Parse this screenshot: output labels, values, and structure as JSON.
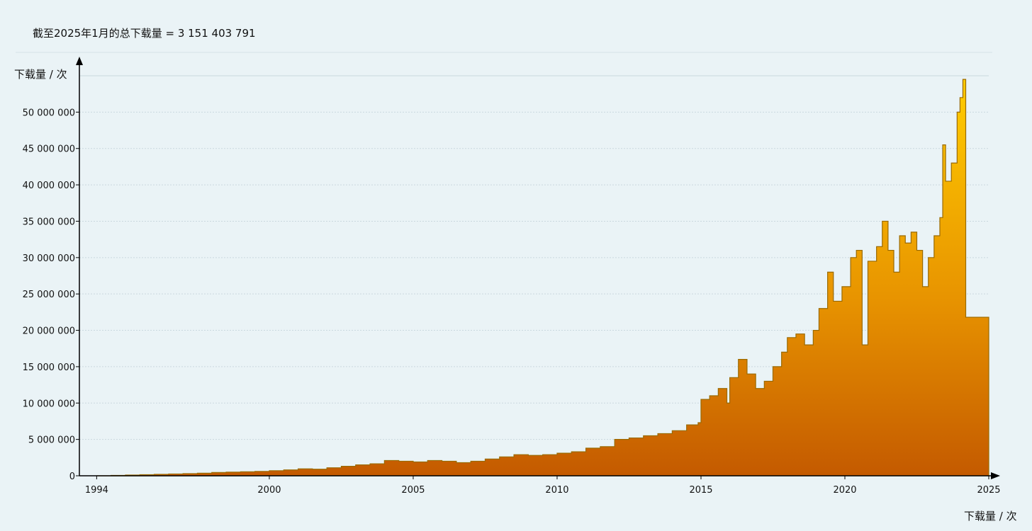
{
  "summary": {
    "label": "截至2025年1月的总下载量",
    "equals": " = ",
    "value": "3 151 403 791"
  },
  "colors": {
    "background": "#eaf3f6",
    "fill_top": "#ffcc00",
    "fill_mid": "#e89400",
    "fill_bottom": "#c45a00",
    "outline": "#9a6a00",
    "grid": "#c9d8de",
    "axis": "#000000"
  },
  "chart_data": {
    "type": "area",
    "step": true,
    "ylabel": "下载量 / 次",
    "xlabel": "下载量 / 次",
    "xlim": [
      1993.4,
      2025
    ],
    "ylim": [
      0,
      55000000
    ],
    "x_ticks": [
      1994,
      2000,
      2005,
      2010,
      2015,
      2020,
      2025
    ],
    "x_tick_labels": [
      "1994",
      "2000",
      "2005",
      "2010",
      "2015",
      "2020",
      "2025"
    ],
    "y_ticks": [
      0,
      5000000,
      10000000,
      15000000,
      20000000,
      25000000,
      30000000,
      35000000,
      40000000,
      45000000,
      50000000
    ],
    "y_tick_labels": [
      "0",
      "5 000 000",
      "10 000 000",
      "15 000 000",
      "20 000 000",
      "25 000 000",
      "30 000 000",
      "35 000 000",
      "40 000 000",
      "45 000 000",
      "50 000 000"
    ],
    "grid": true,
    "series": [
      {
        "points": [
          [
            1994.0,
            0
          ],
          [
            1994.5,
            50000
          ],
          [
            1995.0,
            100000
          ],
          [
            1995.5,
            150000
          ],
          [
            1996.0,
            200000
          ],
          [
            1996.5,
            250000
          ],
          [
            1997.0,
            300000
          ],
          [
            1997.5,
            350000
          ],
          [
            1998.0,
            450000
          ],
          [
            1998.5,
            500000
          ],
          [
            1999.0,
            550000
          ],
          [
            1999.5,
            600000
          ],
          [
            2000.0,
            700000
          ],
          [
            2000.5,
            800000
          ],
          [
            2001.0,
            950000
          ],
          [
            2001.5,
            900000
          ],
          [
            2002.0,
            1100000
          ],
          [
            2002.5,
            1300000
          ],
          [
            2003.0,
            1500000
          ],
          [
            2003.5,
            1650000
          ],
          [
            2004.0,
            2100000
          ],
          [
            2004.5,
            2000000
          ],
          [
            2005.0,
            1900000
          ],
          [
            2005.5,
            2100000
          ],
          [
            2006.0,
            2000000
          ],
          [
            2006.5,
            1800000
          ],
          [
            2007.0,
            2000000
          ],
          [
            2007.5,
            2300000
          ],
          [
            2008.0,
            2600000
          ],
          [
            2008.5,
            2900000
          ],
          [
            2009.0,
            2800000
          ],
          [
            2009.5,
            2900000
          ],
          [
            2010.0,
            3100000
          ],
          [
            2010.5,
            3300000
          ],
          [
            2011.0,
            3800000
          ],
          [
            2011.5,
            4000000
          ],
          [
            2012.0,
            5000000
          ],
          [
            2012.5,
            5200000
          ],
          [
            2013.0,
            5500000
          ],
          [
            2013.5,
            5800000
          ],
          [
            2014.0,
            6200000
          ],
          [
            2014.5,
            7000000
          ],
          [
            2014.9,
            7300000
          ],
          [
            2015.0,
            10500000
          ],
          [
            2015.3,
            11000000
          ],
          [
            2015.6,
            12000000
          ],
          [
            2015.9,
            10000000
          ],
          [
            2016.0,
            13500000
          ],
          [
            2016.3,
            16000000
          ],
          [
            2016.6,
            14000000
          ],
          [
            2016.9,
            12000000
          ],
          [
            2017.2,
            13000000
          ],
          [
            2017.5,
            15000000
          ],
          [
            2017.8,
            17000000
          ],
          [
            2018.0,
            19000000
          ],
          [
            2018.3,
            19500000
          ],
          [
            2018.6,
            18000000
          ],
          [
            2018.9,
            20000000
          ],
          [
            2019.1,
            23000000
          ],
          [
            2019.4,
            28000000
          ],
          [
            2019.6,
            24000000
          ],
          [
            2019.9,
            26000000
          ],
          [
            2020.2,
            30000000
          ],
          [
            2020.4,
            31000000
          ],
          [
            2020.6,
            18000000
          ],
          [
            2020.8,
            29500000
          ],
          [
            2021.1,
            31500000
          ],
          [
            2021.3,
            35000000
          ],
          [
            2021.5,
            31000000
          ],
          [
            2021.7,
            28000000
          ],
          [
            2021.9,
            33000000
          ],
          [
            2022.1,
            32000000
          ],
          [
            2022.3,
            33500000
          ],
          [
            2022.5,
            31000000
          ],
          [
            2022.7,
            26000000
          ],
          [
            2022.9,
            30000000
          ],
          [
            2023.1,
            33000000
          ],
          [
            2023.3,
            35500000
          ],
          [
            2023.4,
            45500000
          ],
          [
            2023.5,
            40500000
          ],
          [
            2023.7,
            43000000
          ],
          [
            2023.9,
            50000000
          ],
          [
            2024.0,
            52000000
          ],
          [
            2024.1,
            54500000
          ],
          [
            2024.2,
            21800000
          ],
          [
            2025.0,
            21800000
          ]
        ]
      }
    ]
  }
}
